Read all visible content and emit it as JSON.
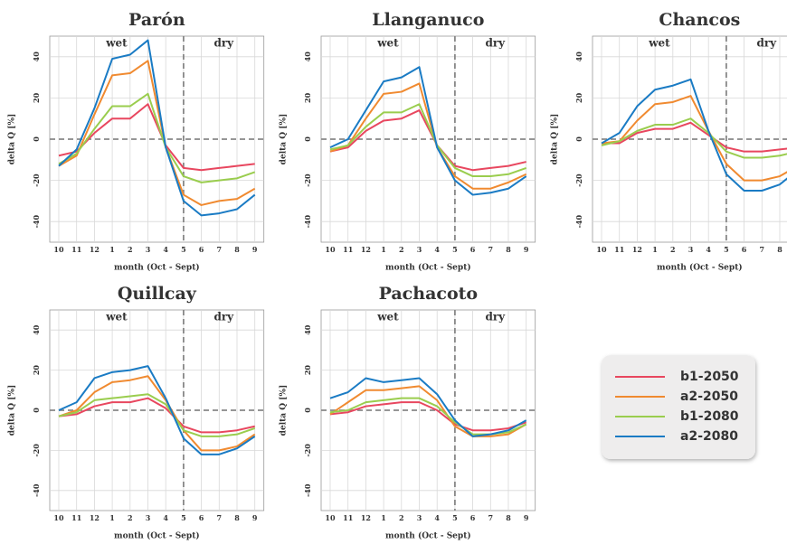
{
  "chart_data": [
    {
      "type": "line",
      "title": "Parón",
      "annotations": [
        "wet",
        "dry"
      ],
      "x_label": "month (Oct - Sept)",
      "y_label": "delta Q [%]",
      "categories": [
        "10",
        "11",
        "12",
        "1",
        "2",
        "3",
        "4",
        "5",
        "6",
        "7",
        "8",
        "9"
      ],
      "ylim": [
        -50,
        50
      ],
      "yticks": [
        -40,
        -20,
        0,
        20,
        40
      ],
      "grid": true,
      "series": [
        {
          "name": "b1-2050",
          "color": "#e8475f",
          "values": [
            -8,
            -6,
            3,
            10,
            10,
            17,
            -3,
            -14,
            -15,
            -14,
            -13,
            -12
          ]
        },
        {
          "name": "a2-2050",
          "color": "#f08a30",
          "values": [
            -13,
            -8,
            12,
            31,
            32,
            38,
            -4,
            -27,
            -32,
            -30,
            -29,
            -24
          ]
        },
        {
          "name": "b1-2080",
          "color": "#9acd4e",
          "values": [
            -12,
            -7,
            5,
            16,
            16,
            22,
            -4,
            -18,
            -21,
            -20,
            -19,
            -16
          ]
        },
        {
          "name": "a2-2080",
          "color": "#1a7bc4",
          "values": [
            -13,
            -5,
            15,
            39,
            41,
            48,
            -4,
            -30,
            -37,
            -36,
            -34,
            -27
          ]
        }
      ]
    },
    {
      "type": "line",
      "title": "Llanganuco",
      "annotations": [
        "wet",
        "dry"
      ],
      "x_label": "month (Oct - Sept)",
      "y_label": "delta Q [%]",
      "categories": [
        "10",
        "11",
        "12",
        "1",
        "2",
        "3",
        "4",
        "5",
        "6",
        "7",
        "8",
        "9"
      ],
      "ylim": [
        -50,
        50
      ],
      "yticks": [
        -40,
        -20,
        0,
        20,
        40
      ],
      "grid": true,
      "series": [
        {
          "name": "b1-2050",
          "color": "#e8475f",
          "values": [
            -6,
            -4,
            4,
            9,
            10,
            14,
            -3,
            -13,
            -15,
            -14,
            -13,
            -11
          ]
        },
        {
          "name": "a2-2050",
          "color": "#f08a30",
          "values": [
            -6,
            -3,
            10,
            22,
            23,
            27,
            -4,
            -18,
            -24,
            -24,
            -21,
            -17
          ]
        },
        {
          "name": "b1-2080",
          "color": "#9acd4e",
          "values": [
            -5,
            -3,
            6,
            13,
            13,
            17,
            -3,
            -14,
            -18,
            -18,
            -17,
            -14
          ]
        },
        {
          "name": "a2-2080",
          "color": "#1a7bc4",
          "values": [
            -4,
            0,
            14,
            28,
            30,
            35,
            -4,
            -20,
            -27,
            -26,
            -24,
            -18
          ]
        }
      ]
    },
    {
      "type": "line",
      "title": "Chancos",
      "annotations": [
        "wet",
        "dry"
      ],
      "x_label": "month (Oct - Sept)",
      "y_label": "delta Q [%]",
      "categories": [
        "10",
        "11",
        "12",
        "1",
        "2",
        "3",
        "4",
        "5",
        "6",
        "7",
        "8",
        "9"
      ],
      "ylim": [
        -50,
        50
      ],
      "yticks": [
        -40,
        -20,
        0,
        20,
        40
      ],
      "grid": true,
      "series": [
        {
          "name": "b1-2050",
          "color": "#e8475f",
          "values": [
            -2,
            -2,
            3,
            5,
            5,
            8,
            2,
            -4,
            -6,
            -6,
            -5,
            -4
          ]
        },
        {
          "name": "a2-2050",
          "color": "#f08a30",
          "values": [
            -2,
            -1,
            9,
            17,
            18,
            21,
            4,
            -12,
            -20,
            -20,
            -18,
            -13
          ]
        },
        {
          "name": "b1-2080",
          "color": "#9acd4e",
          "values": [
            -3,
            -1,
            4,
            7,
            7,
            10,
            3,
            -6,
            -9,
            -9,
            -8,
            -6
          ]
        },
        {
          "name": "a2-2080",
          "color": "#1a7bc4",
          "values": [
            -2,
            3,
            16,
            24,
            26,
            29,
            4,
            -17,
            -25,
            -25,
            -22,
            -15
          ]
        }
      ]
    },
    {
      "type": "line",
      "title": "Quillcay",
      "annotations": [
        "wet",
        "dry"
      ],
      "x_label": "month (Oct - Sept)",
      "y_label": "delta Q [%]",
      "categories": [
        "10",
        "11",
        "12",
        "1",
        "2",
        "3",
        "4",
        "5",
        "6",
        "7",
        "8",
        "9"
      ],
      "ylim": [
        -50,
        50
      ],
      "yticks": [
        -40,
        -20,
        0,
        20,
        40
      ],
      "grid": true,
      "series": [
        {
          "name": "b1-2050",
          "color": "#e8475f",
          "values": [
            -3,
            -2,
            2,
            4,
            4,
            6,
            1,
            -8,
            -11,
            -11,
            -10,
            -8
          ]
        },
        {
          "name": "a2-2050",
          "color": "#f08a30",
          "values": [
            -3,
            0,
            9,
            14,
            15,
            17,
            5,
            -10,
            -20,
            -20,
            -18,
            -12
          ]
        },
        {
          "name": "b1-2080",
          "color": "#9acd4e",
          "values": [
            -3,
            -1,
            5,
            6,
            7,
            8,
            3,
            -10,
            -13,
            -13,
            -12,
            -9
          ]
        },
        {
          "name": "a2-2080",
          "color": "#1a7bc4",
          "values": [
            0,
            4,
            16,
            19,
            20,
            22,
            6,
            -14,
            -22,
            -22,
            -19,
            -13
          ]
        }
      ]
    },
    {
      "type": "line",
      "title": "Pachacoto",
      "annotations": [
        "wet",
        "dry"
      ],
      "x_label": "month (Oct - Sept)",
      "y_label": "delta Q [%]",
      "categories": [
        "10",
        "11",
        "12",
        "1",
        "2",
        "3",
        "4",
        "5",
        "6",
        "7",
        "8",
        "9"
      ],
      "ylim": [
        -50,
        50
      ],
      "yticks": [
        -40,
        -20,
        0,
        20,
        40
      ],
      "grid": true,
      "series": [
        {
          "name": "b1-2050",
          "color": "#e8475f",
          "values": [
            -2,
            -1,
            2,
            3,
            4,
            4,
            0,
            -7,
            -10,
            -10,
            -9,
            -6
          ]
        },
        {
          "name": "a2-2050",
          "color": "#f08a30",
          "values": [
            -2,
            4,
            10,
            10,
            11,
            12,
            5,
            -8,
            -13,
            -13,
            -12,
            -7
          ]
        },
        {
          "name": "b1-2080",
          "color": "#9acd4e",
          "values": [
            -1,
            0,
            4,
            5,
            6,
            6,
            2,
            -6,
            -12,
            -12,
            -11,
            -7
          ]
        },
        {
          "name": "a2-2080",
          "color": "#1a7bc4",
          "values": [
            6,
            9,
            16,
            14,
            15,
            16,
            8,
            -5,
            -13,
            -12,
            -10,
            -5
          ]
        }
      ]
    }
  ]
}
